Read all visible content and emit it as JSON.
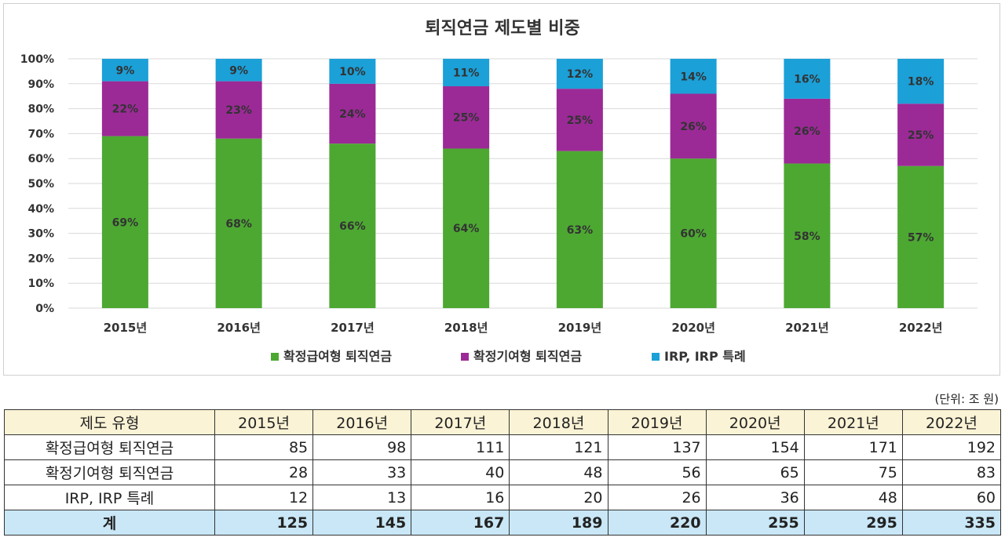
{
  "chart_data": {
    "type": "bar",
    "stacked": true,
    "title": "퇴직연금 제도별 비중",
    "categories": [
      "2015년",
      "2016년",
      "2017년",
      "2018년",
      "2019년",
      "2020년",
      "2021년",
      "2022년"
    ],
    "series": [
      {
        "name": "확정급여형 퇴직연금",
        "color": "#4da832",
        "values": [
          69,
          68,
          66,
          64,
          63,
          60,
          58,
          57
        ]
      },
      {
        "name": "확정기여형 퇴직연금",
        "color": "#9b2a96",
        "values": [
          22,
          23,
          24,
          25,
          25,
          26,
          26,
          25
        ]
      },
      {
        "name": "IRP, IRP 특례",
        "color": "#1ba0d8",
        "values": [
          9,
          9,
          10,
          11,
          12,
          14,
          16,
          18
        ]
      }
    ],
    "y_ticks": [
      "0%",
      "10%",
      "20%",
      "30%",
      "40%",
      "50%",
      "60%",
      "70%",
      "80%",
      "90%",
      "100%"
    ],
    "ylim": [
      0,
      100
    ],
    "grid": true,
    "legend_position": "bottom"
  },
  "unit_label": "(단위: 조 원)",
  "table": {
    "header": [
      "제도 유형",
      "2015년",
      "2016년",
      "2017년",
      "2018년",
      "2019년",
      "2020년",
      "2021년",
      "2022년"
    ],
    "rows": [
      {
        "name": "확정급여형 퇴직연금",
        "values": [
          "85",
          "98",
          "111",
          "121",
          "137",
          "154",
          "171",
          "192"
        ]
      },
      {
        "name": "확정기여형 퇴직연금",
        "values": [
          "28",
          "33",
          "40",
          "48",
          "56",
          "65",
          "75",
          "83"
        ]
      },
      {
        "name": "IRP, IRP 특례",
        "values": [
          "12",
          "13",
          "16",
          "20",
          "26",
          "36",
          "48",
          "60"
        ]
      }
    ],
    "total": {
      "name": "계",
      "values": [
        "125",
        "145",
        "167",
        "189",
        "220",
        "255",
        "295",
        "335"
      ]
    }
  }
}
